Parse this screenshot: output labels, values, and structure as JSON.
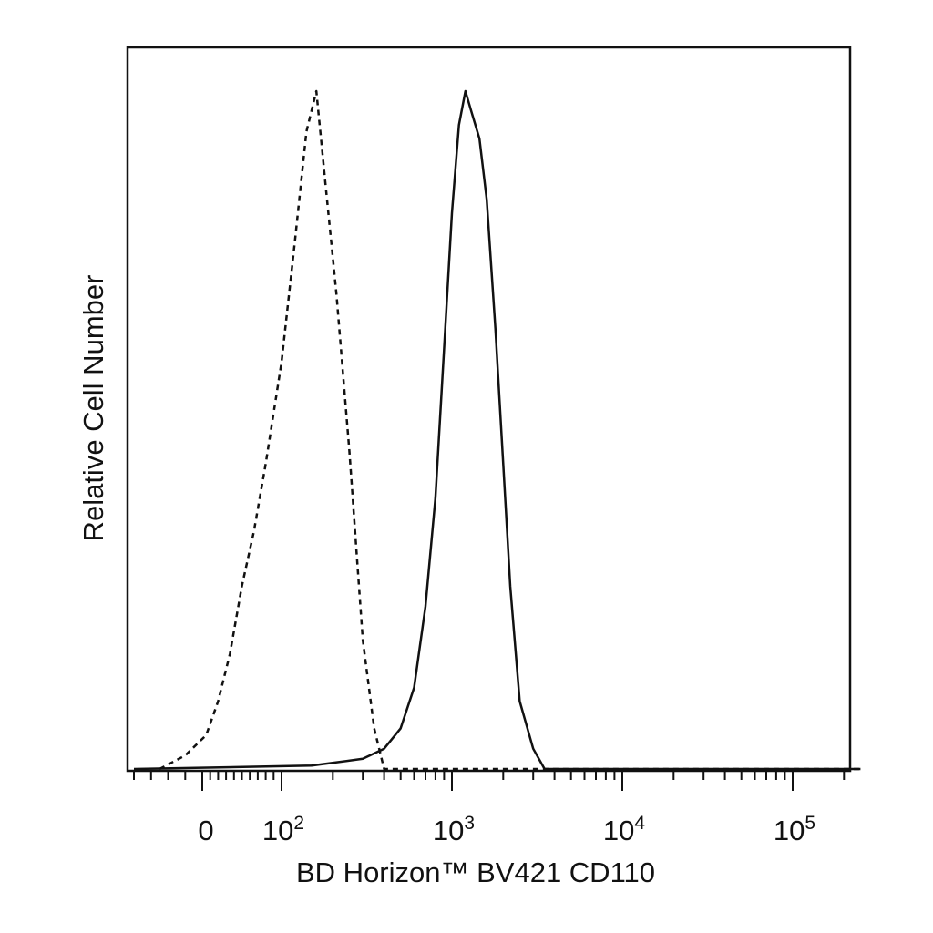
{
  "chart_data": {
    "type": "line",
    "title": "",
    "xlabel": "BD Horizon™ BV421 CD110",
    "ylabel": "Relative Cell Number",
    "x_scale": "biexponential",
    "xlim": [
      -40,
      250000
    ],
    "ylim": [
      0,
      1.0
    ],
    "grid": false,
    "legend": "none",
    "x_tick_labels": [
      {
        "value": 0,
        "base": "0",
        "exp": ""
      },
      {
        "value": 100,
        "base": "10",
        "exp": "2"
      },
      {
        "value": 1000,
        "base": "10",
        "exp": "3"
      },
      {
        "value": 10000,
        "base": "10",
        "exp": "4"
      },
      {
        "value": 100000,
        "base": "10",
        "exp": "5"
      }
    ],
    "series": [
      {
        "style": "dashed",
        "color": "#111111",
        "x": [
          -25,
          -10,
          5,
          20,
          35,
          50,
          65,
          80,
          100,
          120,
          140,
          160,
          180,
          210,
          250,
          300,
          350,
          400,
          500,
          800,
          1500,
          3000,
          250000
        ],
        "y": [
          0.0,
          0.02,
          0.05,
          0.1,
          0.17,
          0.27,
          0.35,
          0.45,
          0.6,
          0.78,
          0.94,
          1.0,
          0.87,
          0.7,
          0.47,
          0.19,
          0.06,
          0.0,
          0.0,
          0.0,
          0.0,
          0.0,
          0.0
        ]
      },
      {
        "style": "solid",
        "color": "#111111",
        "x": [
          -40,
          150,
          300,
          400,
          500,
          600,
          700,
          800,
          900,
          1000,
          1100,
          1200,
          1300,
          1450,
          1600,
          1800,
          2000,
          2200,
          2500,
          3000,
          3500,
          10000,
          250000
        ],
        "y": [
          0.0,
          0.005,
          0.015,
          0.03,
          0.06,
          0.12,
          0.24,
          0.4,
          0.62,
          0.82,
          0.95,
          1.0,
          0.97,
          0.93,
          0.84,
          0.65,
          0.45,
          0.27,
          0.1,
          0.03,
          0.0,
          0.0,
          0.0
        ]
      }
    ]
  }
}
